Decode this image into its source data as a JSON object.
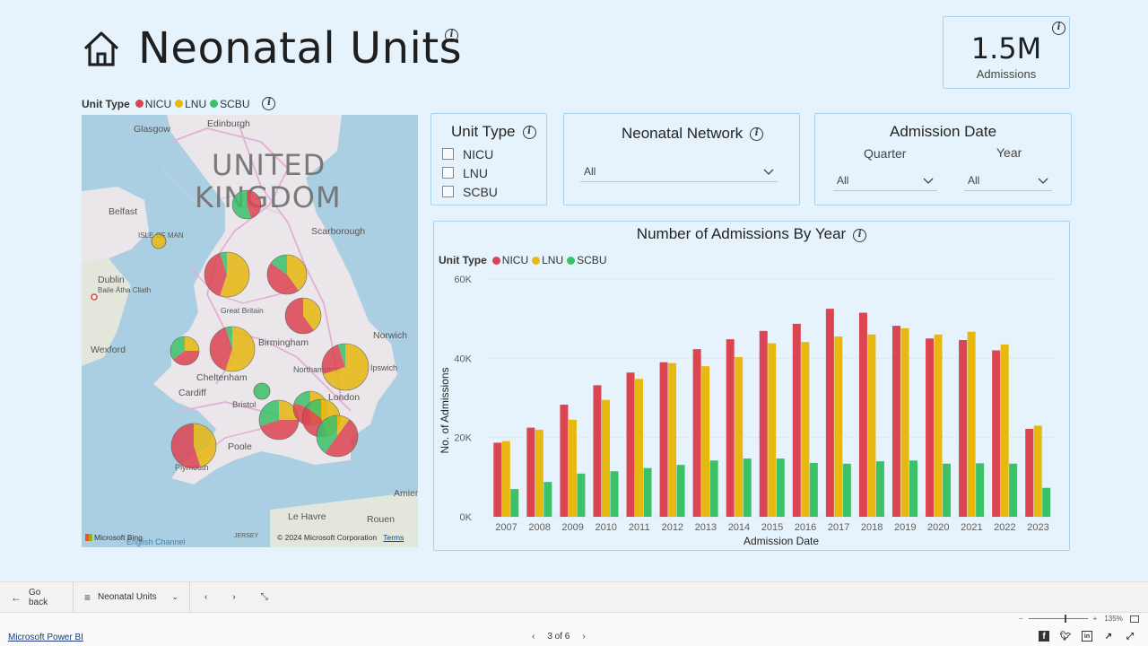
{
  "page": {
    "title": "Neonatal Units"
  },
  "kpi": {
    "value": "1.5M",
    "label": "Admissions"
  },
  "colors": {
    "NICU": "#dc4452",
    "LNU": "#e7b80f",
    "SCBU": "#3bc168",
    "canvas": "#e6f3fc",
    "border": "#a9d4ef"
  },
  "map": {
    "legend_title": "Unit Type",
    "legend": [
      "NICU",
      "LNU",
      "SCBU"
    ],
    "country_label_line1": "UNITED",
    "country_label_line2": "KINGDOM",
    "places": {
      "glasgow": "Glasgow",
      "edinburgh": "Edinburgh",
      "belfast": "Belfast",
      "isle_of_man": "ISLE OF MAN",
      "scarborough": "Scarborough",
      "dublin": "Dublin",
      "baile_atha_cliath": "Baile Átha Cliath",
      "great_britain": "Great Britain",
      "norwich": "Norwich",
      "birmingham": "Birmingham",
      "wexford": "Wexford",
      "northampton": "Northampton",
      "ipswich": "Ipswich",
      "cheltenham": "Cheltenham",
      "cardiff": "Cardiff",
      "london": "London",
      "bristol": "Bristol",
      "poole": "Poole",
      "plymouth": "Plymouth",
      "amiens": "Amien",
      "le_havre": "Le Havre",
      "rouen": "Rouen",
      "english_channel": "English Channel",
      "jersey": "JERSEY"
    },
    "bing": "Microsoft Bing",
    "copyright": "© 2024 Microsoft Corporation",
    "terms": "Terms"
  },
  "slicers": {
    "unit_type": {
      "title": "Unit Type",
      "options": [
        "NICU",
        "LNU",
        "SCBU"
      ]
    },
    "network": {
      "title": "Neonatal Network",
      "value": "All"
    },
    "admission_date": {
      "title": "Admission Date",
      "quarter_label": "Quarter",
      "quarter_value": "All",
      "year_label": "Year",
      "year_value": "All"
    }
  },
  "chart_data": {
    "type": "bar",
    "title": "Number of Admissions By Year",
    "legend_title": "Unit Type",
    "xlabel": "Admission Date",
    "ylabel": "No. of Admissions",
    "ylim": [
      0,
      60000
    ],
    "yticks": [
      0,
      20000,
      40000,
      60000
    ],
    "ytick_labels": [
      "0K",
      "20K",
      "40K",
      "60K"
    ],
    "categories": [
      "2007",
      "2008",
      "2009",
      "2010",
      "2011",
      "2012",
      "2013",
      "2014",
      "2015",
      "2016",
      "2017",
      "2018",
      "2019",
      "2020",
      "2021",
      "2022",
      "2023"
    ],
    "series": [
      {
        "name": "NICU",
        "values": [
          18700,
          22500,
          28300,
          33200,
          36400,
          39000,
          42300,
          44800,
          46900,
          48700,
          52500,
          51500,
          48200,
          45000,
          44600,
          42000,
          22200
        ]
      },
      {
        "name": "LNU",
        "values": [
          19100,
          22000,
          24500,
          29500,
          34800,
          38800,
          38000,
          40300,
          43800,
          44100,
          45500,
          46000,
          47600,
          46000,
          46700,
          43500,
          23000
        ]
      },
      {
        "name": "SCBU",
        "values": [
          7000,
          8800,
          10900,
          11500,
          12300,
          13100,
          14200,
          14700,
          14700,
          13600,
          13400,
          14000,
          14200,
          13400,
          13500,
          13400,
          7300
        ]
      }
    ],
    "grid": true,
    "legend_position": "top-left"
  },
  "nav": {
    "go_back": "Go back",
    "page_name": "Neonatal Units"
  },
  "footer": {
    "link": "Microsoft Power BI",
    "pager": "3 of 6",
    "zoom": "135%"
  }
}
